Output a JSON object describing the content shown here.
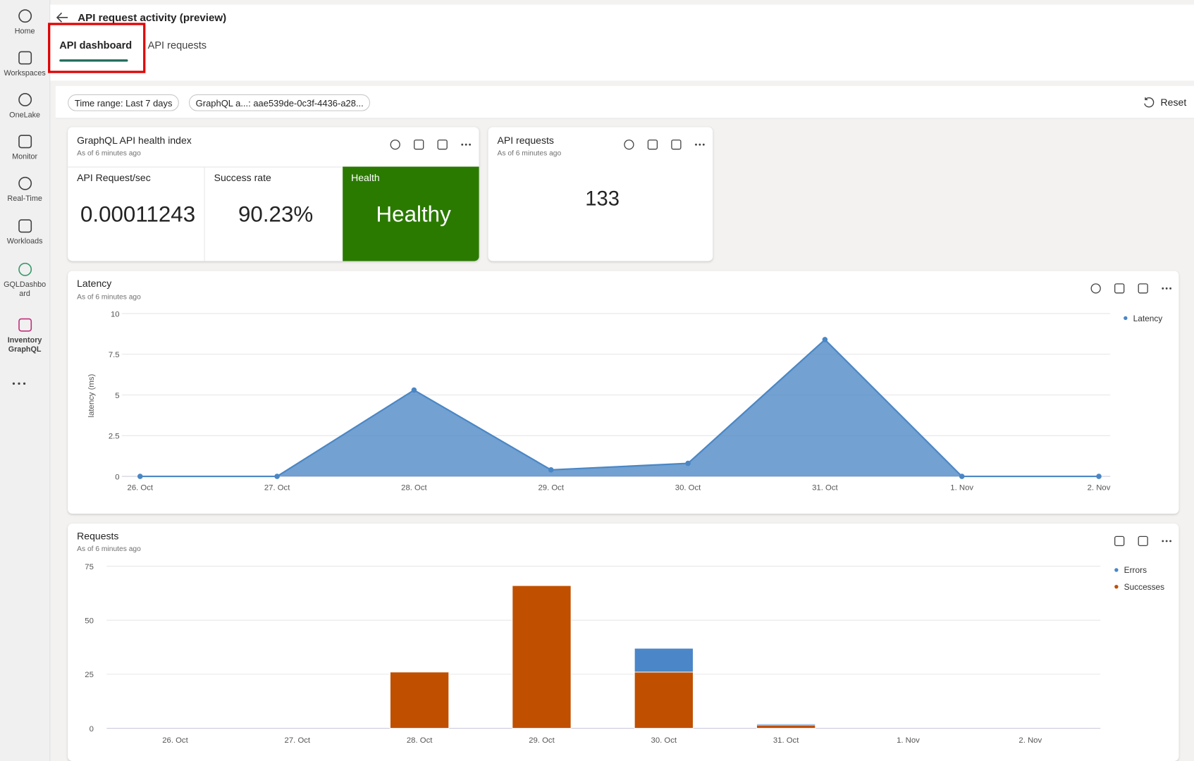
{
  "nav": [
    "Home",
    "Workspaces",
    "OneLake",
    "Monitor",
    "Real-Time",
    "Workloads",
    "GQLDashboard",
    "Inventory GraphQL"
  ],
  "header": {
    "title": "API request activity (preview)"
  },
  "tabs": [
    "API dashboard",
    "API requests"
  ],
  "filters": [
    "Time range: Last 7 days",
    "GraphQL a...: aae539de-0c3f-4436-a28..."
  ],
  "reset": "Reset",
  "health_card": {
    "title": "GraphQL API health index",
    "subtitle": "As of 6 minutes ago",
    "metrics": [
      {
        "label": "API Request/sec",
        "value": "0.00011243"
      },
      {
        "label": "Success rate",
        "value": "90.23%"
      },
      {
        "label": "Health",
        "value": "Healthy"
      }
    ]
  },
  "requests_card": {
    "title": "API requests",
    "subtitle": "As of 6 minutes ago",
    "value": "133"
  },
  "chart_data": [
    {
      "type": "area",
      "title": "Latency",
      "subtitle": "As of 6 minutes ago",
      "y_label": "latency (ms)",
      "categories": [
        "26. Oct",
        "27. Oct",
        "28. Oct",
        "29. Oct",
        "30. Oct",
        "31. Oct",
        "1. Nov",
        "2. Nov"
      ],
      "series": [
        {
          "name": "Latency",
          "color": "#4a86c5",
          "values": [
            0,
            0,
            5.3,
            0.4,
            0.8,
            8.4,
            0,
            0
          ]
        }
      ],
      "ylim": [
        0,
        10
      ],
      "yticks": [
        0,
        2.5,
        5,
        7.5,
        10
      ],
      "grid": true,
      "legend": "top-right"
    },
    {
      "type": "bar",
      "stacked": true,
      "title": "Requests",
      "subtitle": "As of 6 minutes ago",
      "categories": [
        "26. Oct",
        "27. Oct",
        "28. Oct",
        "29. Oct",
        "30. Oct",
        "31. Oct",
        "1. Nov",
        "2. Nov"
      ],
      "series": [
        {
          "name": "Errors",
          "color": "#4a86c8",
          "values": [
            0,
            0,
            0,
            0,
            11,
            0.5,
            0,
            0
          ]
        },
        {
          "name": "Successes",
          "color": "#c04f00",
          "values": [
            0,
            0,
            26,
            66,
            26,
            1.5,
            0,
            0
          ]
        }
      ],
      "ylim": [
        0,
        75
      ],
      "yticks": [
        0,
        25,
        50,
        75
      ],
      "grid": true,
      "legend": "top-right"
    }
  ]
}
